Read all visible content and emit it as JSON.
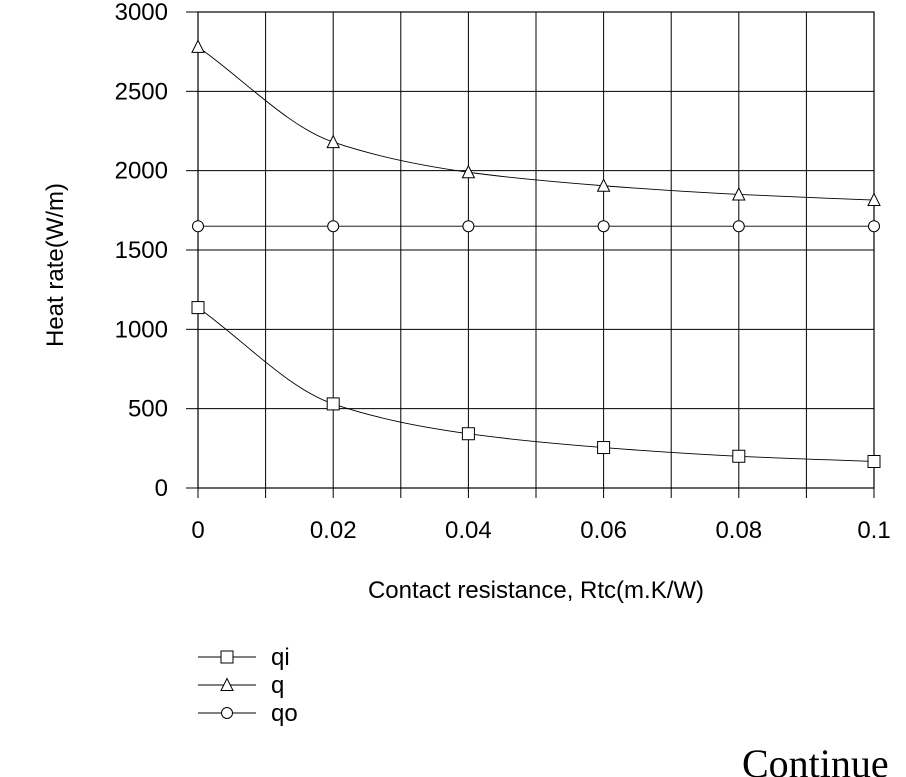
{
  "chart_data": {
    "type": "line",
    "title": "",
    "xlabel": "Contact resistance, Rtc(m.K/W)",
    "ylabel": "Heat rate(W/m)",
    "xlim": [
      0,
      0.1
    ],
    "ylim": [
      0,
      3000
    ],
    "x_ticks": [
      0,
      0.02,
      0.04,
      0.06,
      0.08,
      0.1
    ],
    "x_tick_labels": [
      "0",
      "0.02",
      "0.04",
      "0.06",
      "0.08",
      "0.1"
    ],
    "y_ticks": [
      0,
      500,
      1000,
      1500,
      2000,
      2500,
      3000
    ],
    "y_tick_labels": [
      "0",
      "500",
      "1000",
      "1500",
      "2000",
      "2500",
      "3000"
    ],
    "grid": true,
    "legend_position": "bottom-left",
    "series": [
      {
        "name": "qi",
        "marker": "square",
        "x": [
          0,
          0.02,
          0.04,
          0.06,
          0.08,
          0.1
        ],
        "values": [
          1137,
          530,
          342,
          255,
          200,
          167
        ]
      },
      {
        "name": "q",
        "marker": "triangle",
        "x": [
          0,
          0.02,
          0.04,
          0.06,
          0.08,
          0.1
        ],
        "values": [
          2780,
          2180,
          1990,
          1905,
          1850,
          1815
        ]
      },
      {
        "name": "qo",
        "marker": "circle",
        "x": [
          0,
          0.02,
          0.04,
          0.06,
          0.08,
          0.1
        ],
        "values": [
          1650,
          1650,
          1650,
          1650,
          1650,
          1650
        ]
      }
    ]
  },
  "footer": {
    "text": "Continue"
  }
}
